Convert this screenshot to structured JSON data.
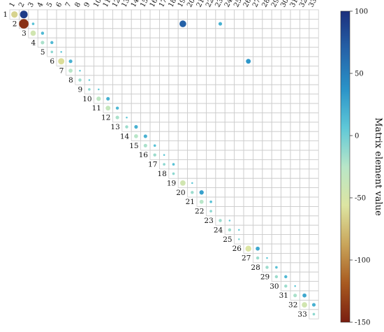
{
  "chart_data": {
    "type": "heatmap",
    "subtype": "upper-triangular correlation-style matrix with circle markers",
    "title": "",
    "n": 33,
    "row_labels": [
      "1",
      "2",
      "3",
      "4",
      "5",
      "6",
      "7",
      "8",
      "9",
      "10",
      "11",
      "12",
      "13",
      "14",
      "15",
      "16",
      "17",
      "18",
      "19",
      "20",
      "21",
      "22",
      "23",
      "24",
      "25",
      "26",
      "27",
      "28",
      "29",
      "30",
      "31",
      "32",
      "33"
    ],
    "column_labels": [
      "1",
      "2",
      "3",
      "4",
      "5",
      "6",
      "7",
      "8",
      "9",
      "10",
      "11",
      "12",
      "13",
      "14",
      "15",
      "16",
      "17",
      "18",
      "19",
      "20",
      "21",
      "22",
      "23",
      "24",
      "25",
      "26",
      "27",
      "28",
      "29",
      "30",
      "31",
      "32",
      "33"
    ],
    "grid": true,
    "colorbar": {
      "label": "Matrix element value",
      "range": [
        -150,
        100
      ],
      "ticks": [
        100,
        50,
        0,
        -50,
        -100,
        -150
      ],
      "tick_labels": [
        "100",
        "50",
        "0",
        "-50",
        "-100",
        "-150"
      ],
      "colors": [
        "#7a1e10",
        "#a85a20",
        "#c9a55a",
        "#dde5a2",
        "#b8e6c8",
        "#5fc8d8",
        "#2a93c8",
        "#2563a9",
        "#1b2f7d"
      ]
    },
    "cells": [
      {
        "row": 1,
        "col": 1,
        "value": -65
      },
      {
        "row": 1,
        "col": 2,
        "value": 92
      },
      {
        "row": 2,
        "col": 2,
        "value": -140
      },
      {
        "row": 2,
        "col": 3,
        "value": 10
      },
      {
        "row": 2,
        "col": 19,
        "value": 70
      },
      {
        "row": 2,
        "col": 23,
        "value": 20
      },
      {
        "row": 3,
        "col": 3,
        "value": -45
      },
      {
        "row": 3,
        "col": 4,
        "value": 15
      },
      {
        "row": 4,
        "col": 4,
        "value": -20
      },
      {
        "row": 4,
        "col": 5,
        "value": 15
      },
      {
        "row": 5,
        "col": 5,
        "value": -10
      },
      {
        "row": 5,
        "col": 6,
        "value": 5
      },
      {
        "row": 6,
        "col": 6,
        "value": -60
      },
      {
        "row": 6,
        "col": 7,
        "value": 20
      },
      {
        "row": 6,
        "col": 26,
        "value": 35
      },
      {
        "row": 7,
        "col": 7,
        "value": -25
      },
      {
        "row": 7,
        "col": 8,
        "value": 5
      },
      {
        "row": 8,
        "col": 8,
        "value": -15
      },
      {
        "row": 8,
        "col": 9,
        "value": 5
      },
      {
        "row": 9,
        "col": 9,
        "value": -10
      },
      {
        "row": 9,
        "col": 10,
        "value": 5
      },
      {
        "row": 10,
        "col": 10,
        "value": -30
      },
      {
        "row": 10,
        "col": 11,
        "value": 20
      },
      {
        "row": 11,
        "col": 11,
        "value": -35
      },
      {
        "row": 11,
        "col": 12,
        "value": 15
      },
      {
        "row": 12,
        "col": 12,
        "value": -20
      },
      {
        "row": 12,
        "col": 13,
        "value": 5
      },
      {
        "row": 13,
        "col": 13,
        "value": -15
      },
      {
        "row": 13,
        "col": 14,
        "value": 20
      },
      {
        "row": 14,
        "col": 14,
        "value": -25
      },
      {
        "row": 14,
        "col": 15,
        "value": 20
      },
      {
        "row": 15,
        "col": 15,
        "value": -20
      },
      {
        "row": 15,
        "col": 16,
        "value": 10
      },
      {
        "row": 16,
        "col": 16,
        "value": -15
      },
      {
        "row": 16,
        "col": 17,
        "value": 5
      },
      {
        "row": 17,
        "col": 17,
        "value": -10
      },
      {
        "row": 17,
        "col": 18,
        "value": 10
      },
      {
        "row": 18,
        "col": 18,
        "value": -10
      },
      {
        "row": 19,
        "col": 19,
        "value": -45
      },
      {
        "row": 19,
        "col": 20,
        "value": 5
      },
      {
        "row": 20,
        "col": 20,
        "value": -15
      },
      {
        "row": 20,
        "col": 21,
        "value": 30
      },
      {
        "row": 21,
        "col": 21,
        "value": -25
      },
      {
        "row": 21,
        "col": 22,
        "value": 10
      },
      {
        "row": 22,
        "col": 22,
        "value": -10
      },
      {
        "row": 23,
        "col": 23,
        "value": -15
      },
      {
        "row": 23,
        "col": 24,
        "value": 5
      },
      {
        "row": 24,
        "col": 24,
        "value": -15
      },
      {
        "row": 24,
        "col": 25,
        "value": 5
      },
      {
        "row": 25,
        "col": 25,
        "value": -5
      },
      {
        "row": 26,
        "col": 26,
        "value": -55
      },
      {
        "row": 26,
        "col": 27,
        "value": 25
      },
      {
        "row": 27,
        "col": 27,
        "value": -15
      },
      {
        "row": 27,
        "col": 28,
        "value": 5
      },
      {
        "row": 28,
        "col": 28,
        "value": -15
      },
      {
        "row": 28,
        "col": 29,
        "value": 10
      },
      {
        "row": 29,
        "col": 29,
        "value": -15
      },
      {
        "row": 29,
        "col": 30,
        "value": 15
      },
      {
        "row": 30,
        "col": 30,
        "value": -15
      },
      {
        "row": 30,
        "col": 31,
        "value": 5
      },
      {
        "row": 31,
        "col": 31,
        "value": -20
      },
      {
        "row": 31,
        "col": 32,
        "value": 25
      },
      {
        "row": 32,
        "col": 32,
        "value": -45
      },
      {
        "row": 32,
        "col": 33,
        "value": 20
      },
      {
        "row": 33,
        "col": 33,
        "value": -10
      }
    ]
  }
}
